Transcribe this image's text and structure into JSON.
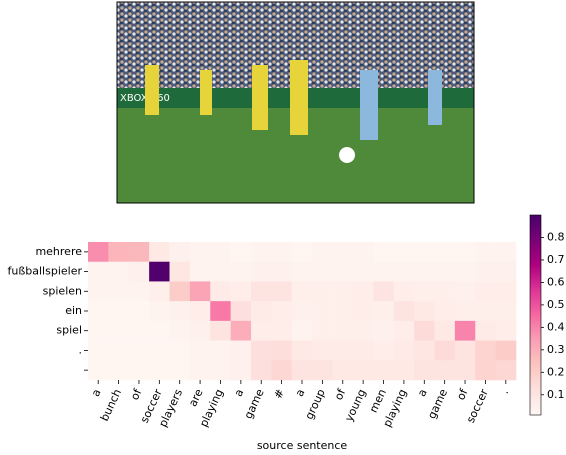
{
  "chart_data": {
    "type": "heatmap",
    "xlabel": "source sentence",
    "categories": [
      "a",
      "bunch",
      "of",
      "soccer",
      "players",
      "are",
      "playing",
      "a",
      "game",
      "#",
      "a",
      "group",
      "of",
      "young",
      "men",
      "playing",
      "a",
      "game",
      "of",
      "soccer",
      "."
    ],
    "rows": [
      "mehrere",
      "fußballspieler",
      "spielen",
      "ein",
      "spiel",
      ".",
      null
    ],
    "values": [
      [
        0.38,
        0.28,
        0.27,
        0.08,
        0.04,
        0.03,
        0.03,
        0.02,
        0.03,
        0.03,
        0.02,
        0.03,
        0.03,
        0.03,
        0.02,
        0.02,
        0.02,
        0.02,
        0.02,
        0.03,
        0.03
      ],
      [
        0.03,
        0.03,
        0.04,
        0.88,
        0.09,
        0.03,
        0.03,
        0.03,
        0.04,
        0.04,
        0.03,
        0.03,
        0.03,
        0.03,
        0.03,
        0.03,
        0.03,
        0.03,
        0.03,
        0.04,
        0.04
      ],
      [
        0.03,
        0.03,
        0.03,
        0.05,
        0.2,
        0.33,
        0.07,
        0.06,
        0.1,
        0.1,
        0.05,
        0.05,
        0.05,
        0.06,
        0.1,
        0.06,
        0.05,
        0.05,
        0.04,
        0.06,
        0.06
      ],
      [
        0.02,
        0.02,
        0.02,
        0.03,
        0.04,
        0.06,
        0.42,
        0.12,
        0.07,
        0.06,
        0.04,
        0.05,
        0.05,
        0.06,
        0.05,
        0.1,
        0.08,
        0.06,
        0.05,
        0.05,
        0.05
      ],
      [
        0.02,
        0.02,
        0.02,
        0.02,
        0.03,
        0.04,
        0.1,
        0.3,
        0.06,
        0.06,
        0.03,
        0.05,
        0.05,
        0.05,
        0.04,
        0.06,
        0.14,
        0.08,
        0.4,
        0.07,
        0.06
      ],
      [
        0.02,
        0.02,
        0.02,
        0.02,
        0.02,
        0.03,
        0.03,
        0.04,
        0.12,
        0.13,
        0.08,
        0.07,
        0.07,
        0.07,
        0.06,
        0.07,
        0.09,
        0.14,
        0.1,
        0.17,
        0.2
      ],
      [
        0.02,
        0.02,
        0.02,
        0.02,
        0.02,
        0.03,
        0.03,
        0.04,
        0.12,
        0.16,
        0.1,
        0.1,
        0.08,
        0.08,
        0.08,
        0.08,
        0.1,
        0.1,
        0.1,
        0.17,
        0.16
      ]
    ],
    "colormap": "RdPu",
    "clim": [
      0.01,
      0.9
    ],
    "cticks": [
      0.1,
      0.2,
      0.3,
      0.4,
      0.5,
      0.6,
      0.7,
      0.8
    ]
  }
}
